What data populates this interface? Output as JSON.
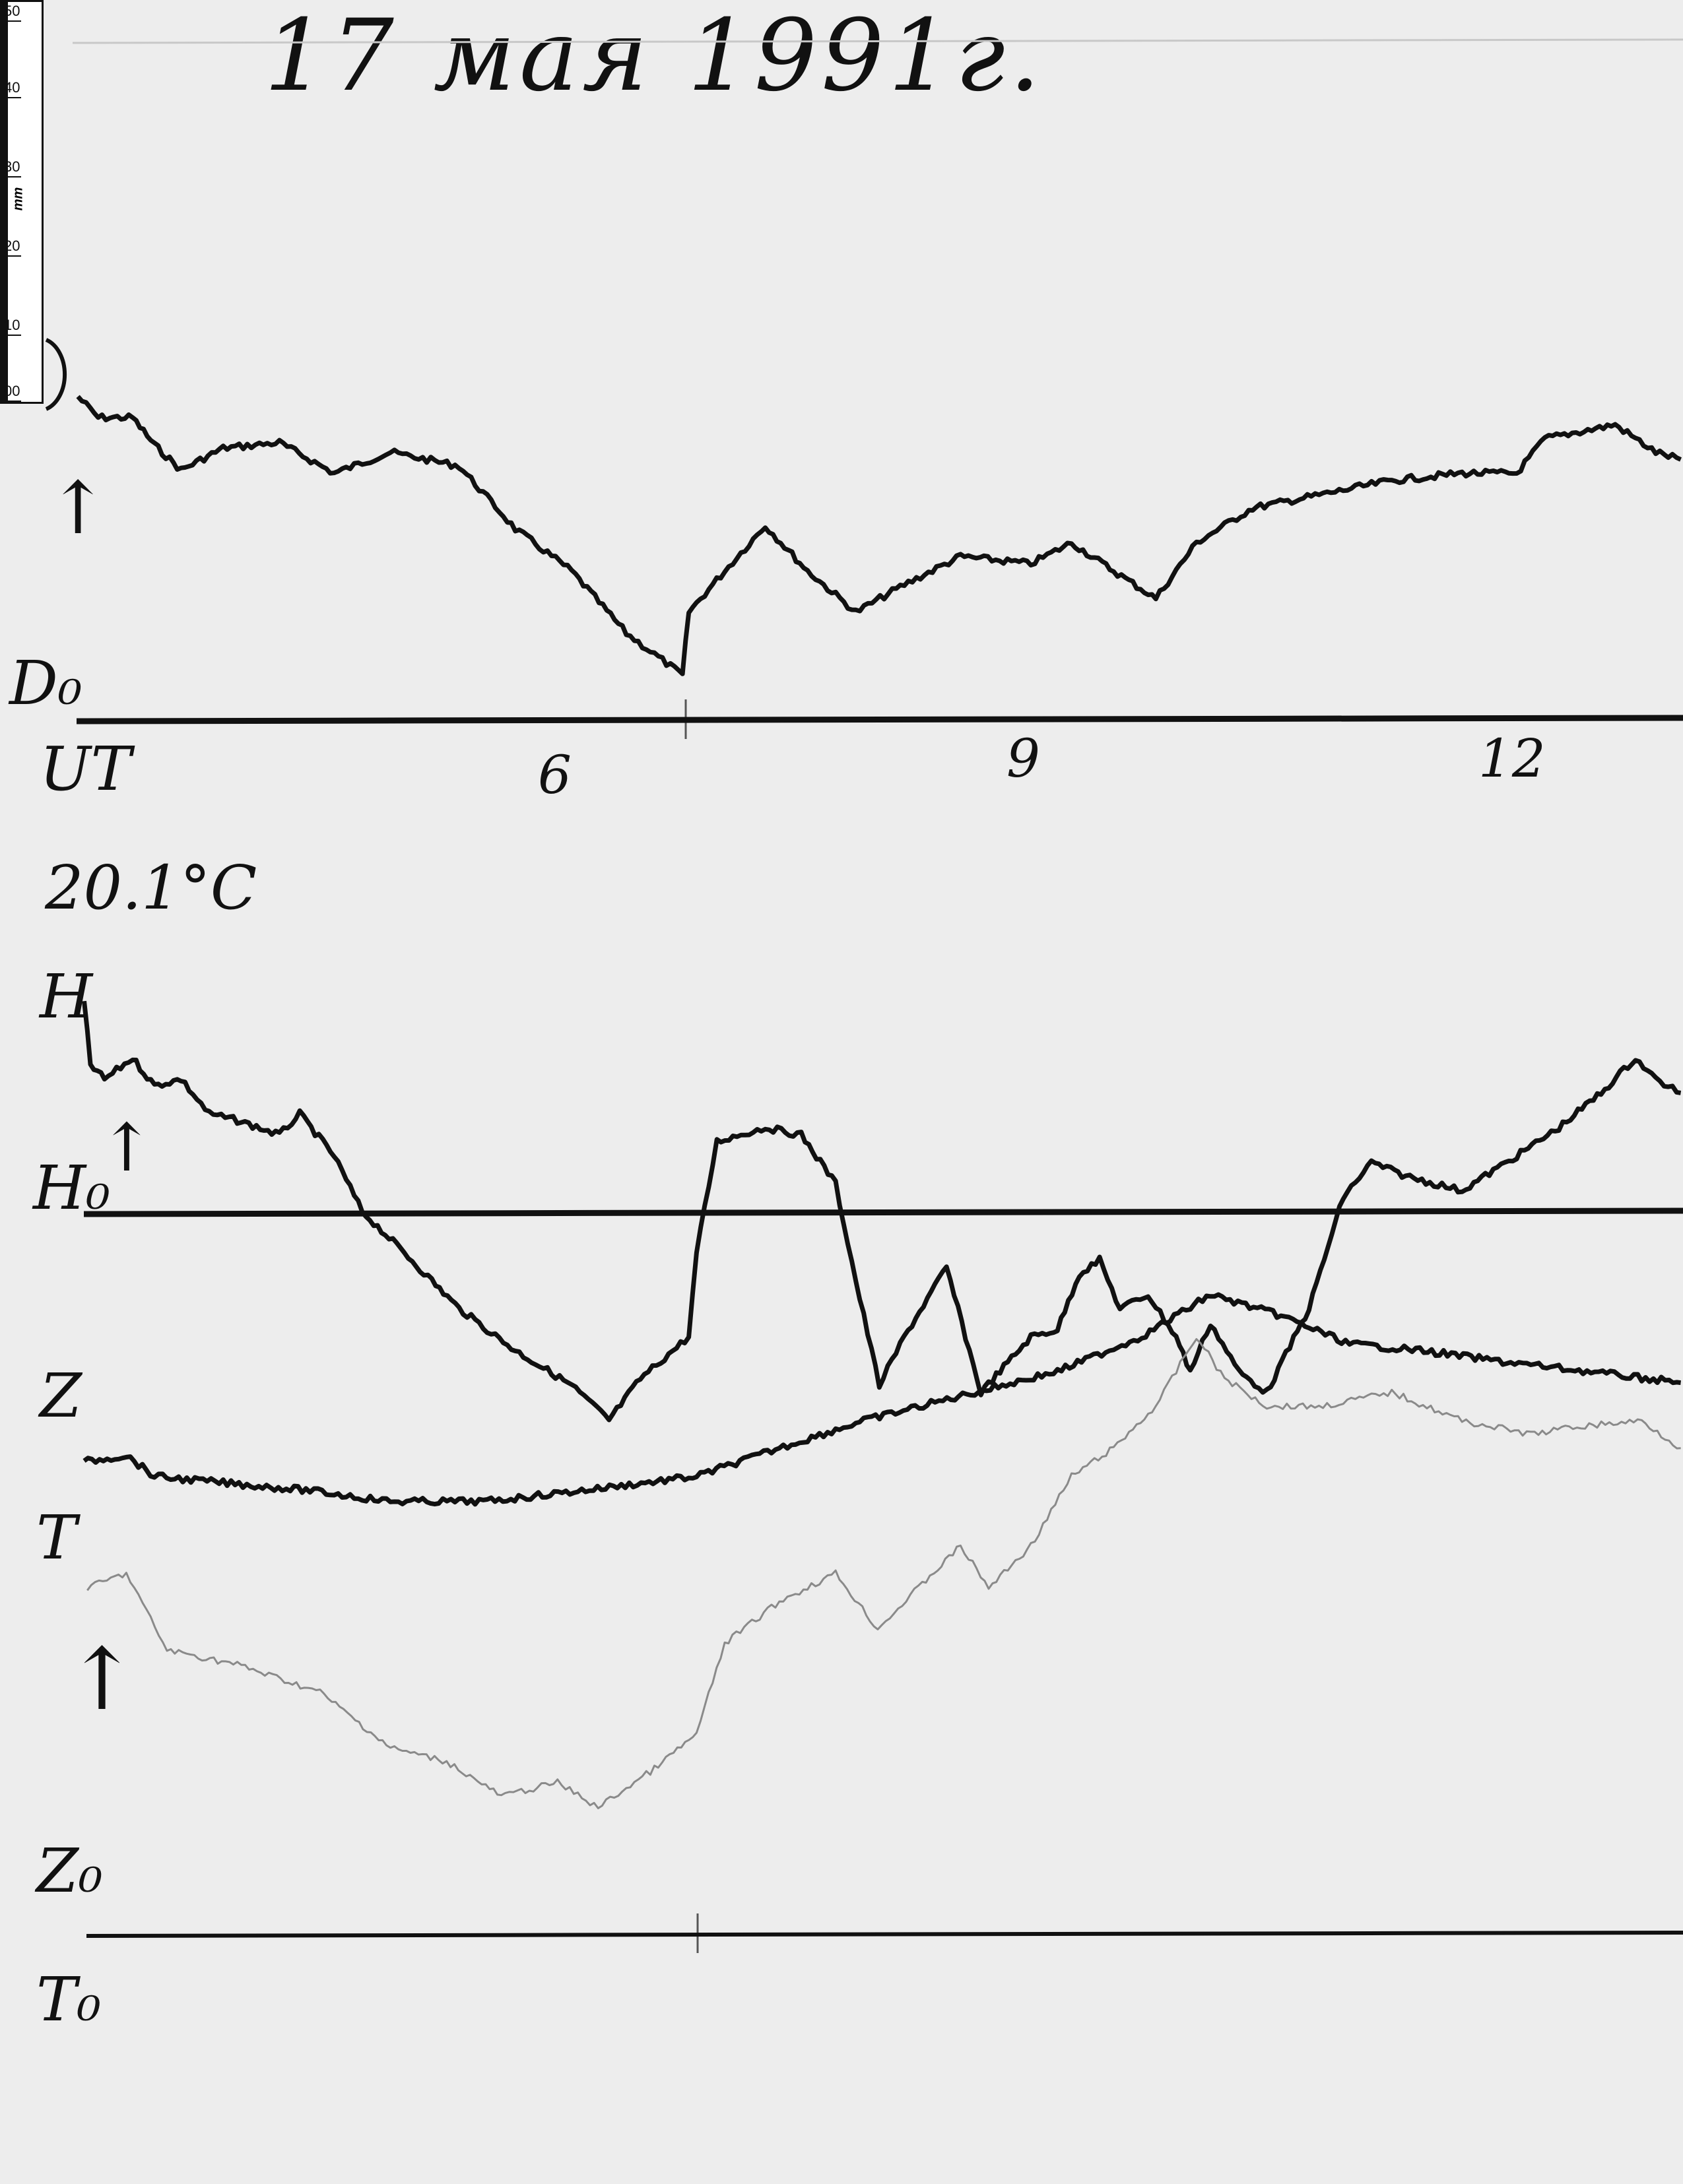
{
  "title": "17 мая 1991г.",
  "temperature": "20.1°C",
  "ruler": {
    "unit": "mm",
    "labels": [
      "50",
      "40",
      "30",
      "20",
      "10",
      "00"
    ]
  },
  "labels": {
    "D": "D",
    "D0": "D₀",
    "H": "H",
    "H0": "H₀",
    "Z": "Z",
    "T": "T",
    "Z0": "Z₀",
    "T0": "T₀",
    "arrow": "↑"
  },
  "chart_data": {
    "type": "line",
    "title": "17 мая 1991г.",
    "xlabel": "UT",
    "x_ticks": [
      "6",
      "9",
      "12"
    ],
    "x_tick_values": [
      6,
      9,
      12
    ],
    "xlim": [
      2.95,
      13.21
    ],
    "y_unit": "mm",
    "grid": false,
    "colors": {
      "ink": "#111111",
      "T": "#8a8a8a",
      "paper": "#ededed"
    },
    "series": [
      {
        "name": "D",
        "baseline": "D₀",
        "x": [
          2.95,
          3.08,
          3.3,
          3.44,
          3.61,
          3.88,
          4.24,
          4.59,
          4.95,
          5.39,
          5.75,
          6.11,
          6.46,
          6.82,
          6.86,
          7.09,
          7.35,
          7.62,
          7.93,
          8.24,
          8.6,
          9.05,
          9.31,
          9.58,
          9.85,
          10.11,
          10.47,
          10.92,
          11.36,
          11.81,
          12.16,
          12.34,
          12.79,
          13.05,
          13.21
        ],
        "y": [
          40.2,
          37.6,
          37.6,
          34.2,
          31.1,
          33.8,
          34.5,
          30.7,
          33.3,
          31.6,
          23.8,
          18.6,
          10.9,
          5.7,
          13.5,
          18.6,
          24.2,
          18.6,
          13.5,
          16.9,
          20.4,
          19.5,
          22.1,
          18.6,
          15.2,
          22.1,
          26.4,
          28.1,
          29.8,
          30.7,
          30.7,
          35.0,
          36.7,
          33.3,
          32.4
        ]
      },
      {
        "name": "H",
        "baseline": "H₀",
        "x": [
          2.99,
          3.03,
          3.12,
          3.3,
          3.44,
          3.61,
          3.79,
          3.97,
          4.24,
          4.37,
          4.59,
          4.77,
          5.04,
          5.39,
          5.75,
          6.11,
          6.35,
          6.55,
          6.86,
          6.91,
          7.04,
          7.35,
          7.58,
          7.8,
          7.93,
          8.08,
          8.24,
          8.51,
          8.73,
          9.05,
          9.22,
          9.36,
          9.49,
          9.62,
          9.8,
          9.98,
          10.07,
          10.2,
          10.38,
          10.56,
          10.83,
          11.05,
          11.23,
          11.45,
          11.81,
          12.16,
          12.43,
          12.7,
          12.92,
          13.05,
          13.21
        ],
        "y": [
          26.2,
          18.5,
          16.7,
          19.3,
          15.9,
          16.7,
          12.4,
          11.6,
          9.8,
          12.4,
          7.2,
          0.3,
          -4.8,
          -11.7,
          -16.9,
          -21.2,
          -25.5,
          -20.4,
          -15.2,
          -4.8,
          9.0,
          10.7,
          9.8,
          3.8,
          -8.3,
          -21.2,
          -15.2,
          -6.6,
          -22.1,
          -15.2,
          -14.3,
          -7.4,
          -5.7,
          -11.7,
          -10.0,
          -15.2,
          -19.5,
          -13.5,
          -19.5,
          -22.1,
          -11.7,
          2.1,
          6.4,
          4.7,
          2.9,
          7.2,
          10.7,
          15.0,
          19.3,
          16.7,
          15.0
        ]
      },
      {
        "name": "Z",
        "baseline": "Z₀",
        "x": [
          2.99,
          3.26,
          3.44,
          3.88,
          4.41,
          4.95,
          5.57,
          6.2,
          6.91,
          7.44,
          7.98,
          8.69,
          9.22,
          9.76,
          10.2,
          10.65,
          11.09,
          11.54,
          12.07,
          12.61,
          13.21
        ],
        "y": [
          58.7,
          59.5,
          56.9,
          56.1,
          55.2,
          53.8,
          53.8,
          55.2,
          56.9,
          60.4,
          63.8,
          67.3,
          69.9,
          74.2,
          79.4,
          76.8,
          73.3,
          72.5,
          71.1,
          69.9,
          68.5
        ]
      },
      {
        "name": "T",
        "baseline": "T₀",
        "x": [
          3.01,
          3.26,
          3.52,
          3.97,
          4.5,
          4.95,
          5.31,
          5.66,
          6.02,
          6.28,
          6.64,
          6.91,
          7.09,
          7.44,
          7.8,
          8.07,
          8.33,
          8.6,
          8.78,
          9.05,
          9.31,
          9.58,
          9.85,
          10.11,
          10.29,
          10.56,
          10.92,
          11.36,
          11.81,
          12.25,
          12.52,
          12.96,
          13.21
        ],
        "y": [
          43.1,
          44.9,
          35.4,
          33.6,
          30.2,
          23.3,
          21.6,
          17.3,
          19.0,
          15.9,
          20.7,
          25.0,
          36.2,
          41.4,
          44.9,
          38.0,
          43.1,
          48.3,
          43.1,
          48.3,
          56.9,
          60.4,
          65.6,
          74.2,
          69.0,
          65.6,
          65.6,
          67.3,
          63.8,
          62.1,
          63.0,
          63.8,
          60.4
        ]
      }
    ]
  }
}
